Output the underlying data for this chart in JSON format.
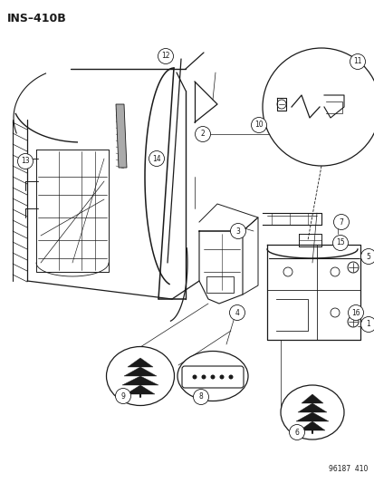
{
  "title": "INS–410B",
  "footer": "96187  410",
  "bg_color": "#ffffff",
  "lc": "#1a1a1a",
  "title_fontsize": 9,
  "footer_fontsize": 5.5,
  "fig_w": 4.14,
  "fig_h": 5.33,
  "dpi": 100
}
